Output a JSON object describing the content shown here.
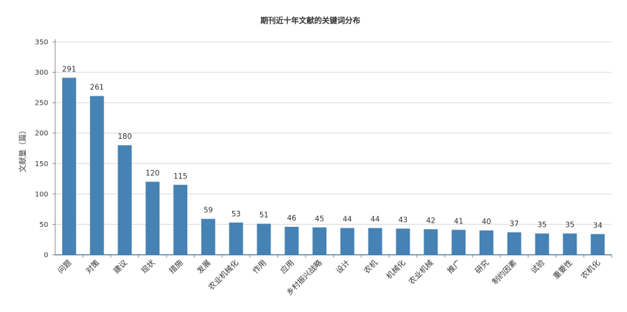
{
  "chart_data": {
    "type": "bar",
    "title": "期刊近十年文献的关键词分布",
    "xlabel": "",
    "ylabel": "文献量（篇）",
    "ylim": [
      0,
      350
    ],
    "yticks": [
      0,
      50,
      100,
      150,
      200,
      250,
      300,
      350
    ],
    "grid": true,
    "legend": "none",
    "bar_color": "#4682b4",
    "categories": [
      "问题",
      "对策",
      "建议",
      "现状",
      "措施",
      "发展",
      "农业机械化",
      "作用",
      "应用",
      "乡村振兴战略",
      "设计",
      "农机",
      "机械化",
      "农业机械",
      "推广",
      "研究",
      "制约因素",
      "试验",
      "重要性",
      "农机化"
    ],
    "values": [
      291,
      261,
      180,
      120,
      115,
      59,
      53,
      51,
      46,
      45,
      44,
      44,
      43,
      42,
      41,
      40,
      37,
      35,
      35,
      34
    ]
  }
}
